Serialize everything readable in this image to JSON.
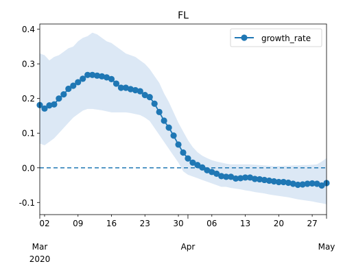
{
  "chart_data": {
    "type": "line",
    "title": "FL",
    "xlabel": "",
    "ylabel": "",
    "x_range": [
      "2020-03-01",
      "2020-04-30"
    ],
    "ylim": [
      -0.135,
      0.415
    ],
    "grid": false,
    "legend": {
      "placement": "top-right",
      "entries": [
        "growth_rate"
      ]
    },
    "reference_line": {
      "y": 0.0,
      "style": "dashed",
      "color": "#1f77b4"
    },
    "colors": {
      "series": "#1f77b4",
      "band": "#dce8f5",
      "axis": "#000000"
    },
    "y_ticks": [
      "-0.1",
      "0.0",
      "0.1",
      "0.2",
      "0.3",
      "0.4"
    ],
    "y_tick_values": [
      -0.1,
      0.0,
      0.1,
      0.2,
      0.3,
      0.4
    ],
    "x_ticks": [
      {
        "date": "2020-03-02",
        "label": "02"
      },
      {
        "date": "2020-03-09",
        "label": "09"
      },
      {
        "date": "2020-03-16",
        "label": "16"
      },
      {
        "date": "2020-03-23",
        "label": "23"
      },
      {
        "date": "2020-03-30",
        "label": "30"
      },
      {
        "date": "2020-04-06",
        "label": "06"
      },
      {
        "date": "2020-04-13",
        "label": "13"
      },
      {
        "date": "2020-04-20",
        "label": "20"
      },
      {
        "date": "2020-04-27",
        "label": "27"
      }
    ],
    "x_major_ticks": [
      {
        "date": "2020-03-01",
        "label": "Mar",
        "year_label": "2020"
      },
      {
        "date": "2020-04-01",
        "label": "Apr",
        "year_label": ""
      },
      {
        "date": "2020-05-01",
        "label": "May",
        "year_label": ""
      }
    ],
    "series": [
      {
        "name": "growth_rate",
        "x": [
          "2020-03-01",
          "2020-03-02",
          "2020-03-03",
          "2020-03-04",
          "2020-03-05",
          "2020-03-06",
          "2020-03-07",
          "2020-03-08",
          "2020-03-09",
          "2020-03-10",
          "2020-03-11",
          "2020-03-12",
          "2020-03-13",
          "2020-03-14",
          "2020-03-15",
          "2020-03-16",
          "2020-03-17",
          "2020-03-18",
          "2020-03-19",
          "2020-03-20",
          "2020-03-21",
          "2020-03-22",
          "2020-03-23",
          "2020-03-24",
          "2020-03-25",
          "2020-03-26",
          "2020-03-27",
          "2020-03-28",
          "2020-03-29",
          "2020-03-30",
          "2020-03-31",
          "2020-04-01",
          "2020-04-02",
          "2020-04-03",
          "2020-04-04",
          "2020-04-05",
          "2020-04-06",
          "2020-04-07",
          "2020-04-08",
          "2020-04-09",
          "2020-04-10",
          "2020-04-11",
          "2020-04-12",
          "2020-04-13",
          "2020-04-14",
          "2020-04-15",
          "2020-04-16",
          "2020-04-17",
          "2020-04-18",
          "2020-04-19",
          "2020-04-20",
          "2020-04-21",
          "2020-04-22",
          "2020-04-23",
          "2020-04-24",
          "2020-04-25",
          "2020-04-26",
          "2020-04-27",
          "2020-04-28",
          "2020-04-29",
          "2020-04-30"
        ],
        "y": [
          0.181,
          0.171,
          0.18,
          0.183,
          0.2,
          0.212,
          0.228,
          0.237,
          0.247,
          0.257,
          0.268,
          0.268,
          0.266,
          0.264,
          0.261,
          0.256,
          0.243,
          0.231,
          0.231,
          0.227,
          0.224,
          0.221,
          0.21,
          0.204,
          0.185,
          0.161,
          0.136,
          0.116,
          0.093,
          0.067,
          0.044,
          0.027,
          0.015,
          0.008,
          0.001,
          -0.007,
          -0.012,
          -0.017,
          -0.024,
          -0.026,
          -0.026,
          -0.031,
          -0.03,
          -0.028,
          -0.028,
          -0.032,
          -0.033,
          -0.035,
          -0.037,
          -0.039,
          -0.041,
          -0.041,
          -0.043,
          -0.046,
          -0.049,
          -0.048,
          -0.046,
          -0.045,
          -0.046,
          -0.051,
          -0.044
        ],
        "lower": [
          0.07,
          0.065,
          0.075,
          0.085,
          0.1,
          0.115,
          0.13,
          0.145,
          0.155,
          0.165,
          0.17,
          0.17,
          0.168,
          0.166,
          0.163,
          0.16,
          0.16,
          0.16,
          0.16,
          0.158,
          0.155,
          0.152,
          0.145,
          0.135,
          0.115,
          0.095,
          0.075,
          0.055,
          0.035,
          0.015,
          -0.01,
          -0.02,
          -0.025,
          -0.03,
          -0.035,
          -0.04,
          -0.045,
          -0.05,
          -0.055,
          -0.055,
          -0.058,
          -0.06,
          -0.062,
          -0.065,
          -0.067,
          -0.07,
          -0.072,
          -0.074,
          -0.077,
          -0.079,
          -0.081,
          -0.083,
          -0.085,
          -0.088,
          -0.091,
          -0.093,
          -0.095,
          -0.097,
          -0.1,
          -0.102,
          -0.105
        ],
        "upper": [
          0.33,
          0.325,
          0.31,
          0.32,
          0.325,
          0.335,
          0.345,
          0.35,
          0.365,
          0.375,
          0.38,
          0.39,
          0.385,
          0.375,
          0.365,
          0.36,
          0.35,
          0.34,
          0.33,
          0.325,
          0.32,
          0.31,
          0.3,
          0.285,
          0.265,
          0.245,
          0.215,
          0.19,
          0.16,
          0.13,
          0.105,
          0.08,
          0.06,
          0.045,
          0.035,
          0.028,
          0.022,
          0.018,
          0.015,
          0.012,
          0.01,
          0.01,
          0.01,
          0.01,
          0.01,
          0.009,
          0.008,
          0.007,
          0.006,
          0.005,
          0.005,
          0.006,
          0.006,
          0.007,
          0.007,
          0.008,
          0.008,
          0.009,
          0.01,
          0.018,
          0.028
        ]
      }
    ]
  }
}
